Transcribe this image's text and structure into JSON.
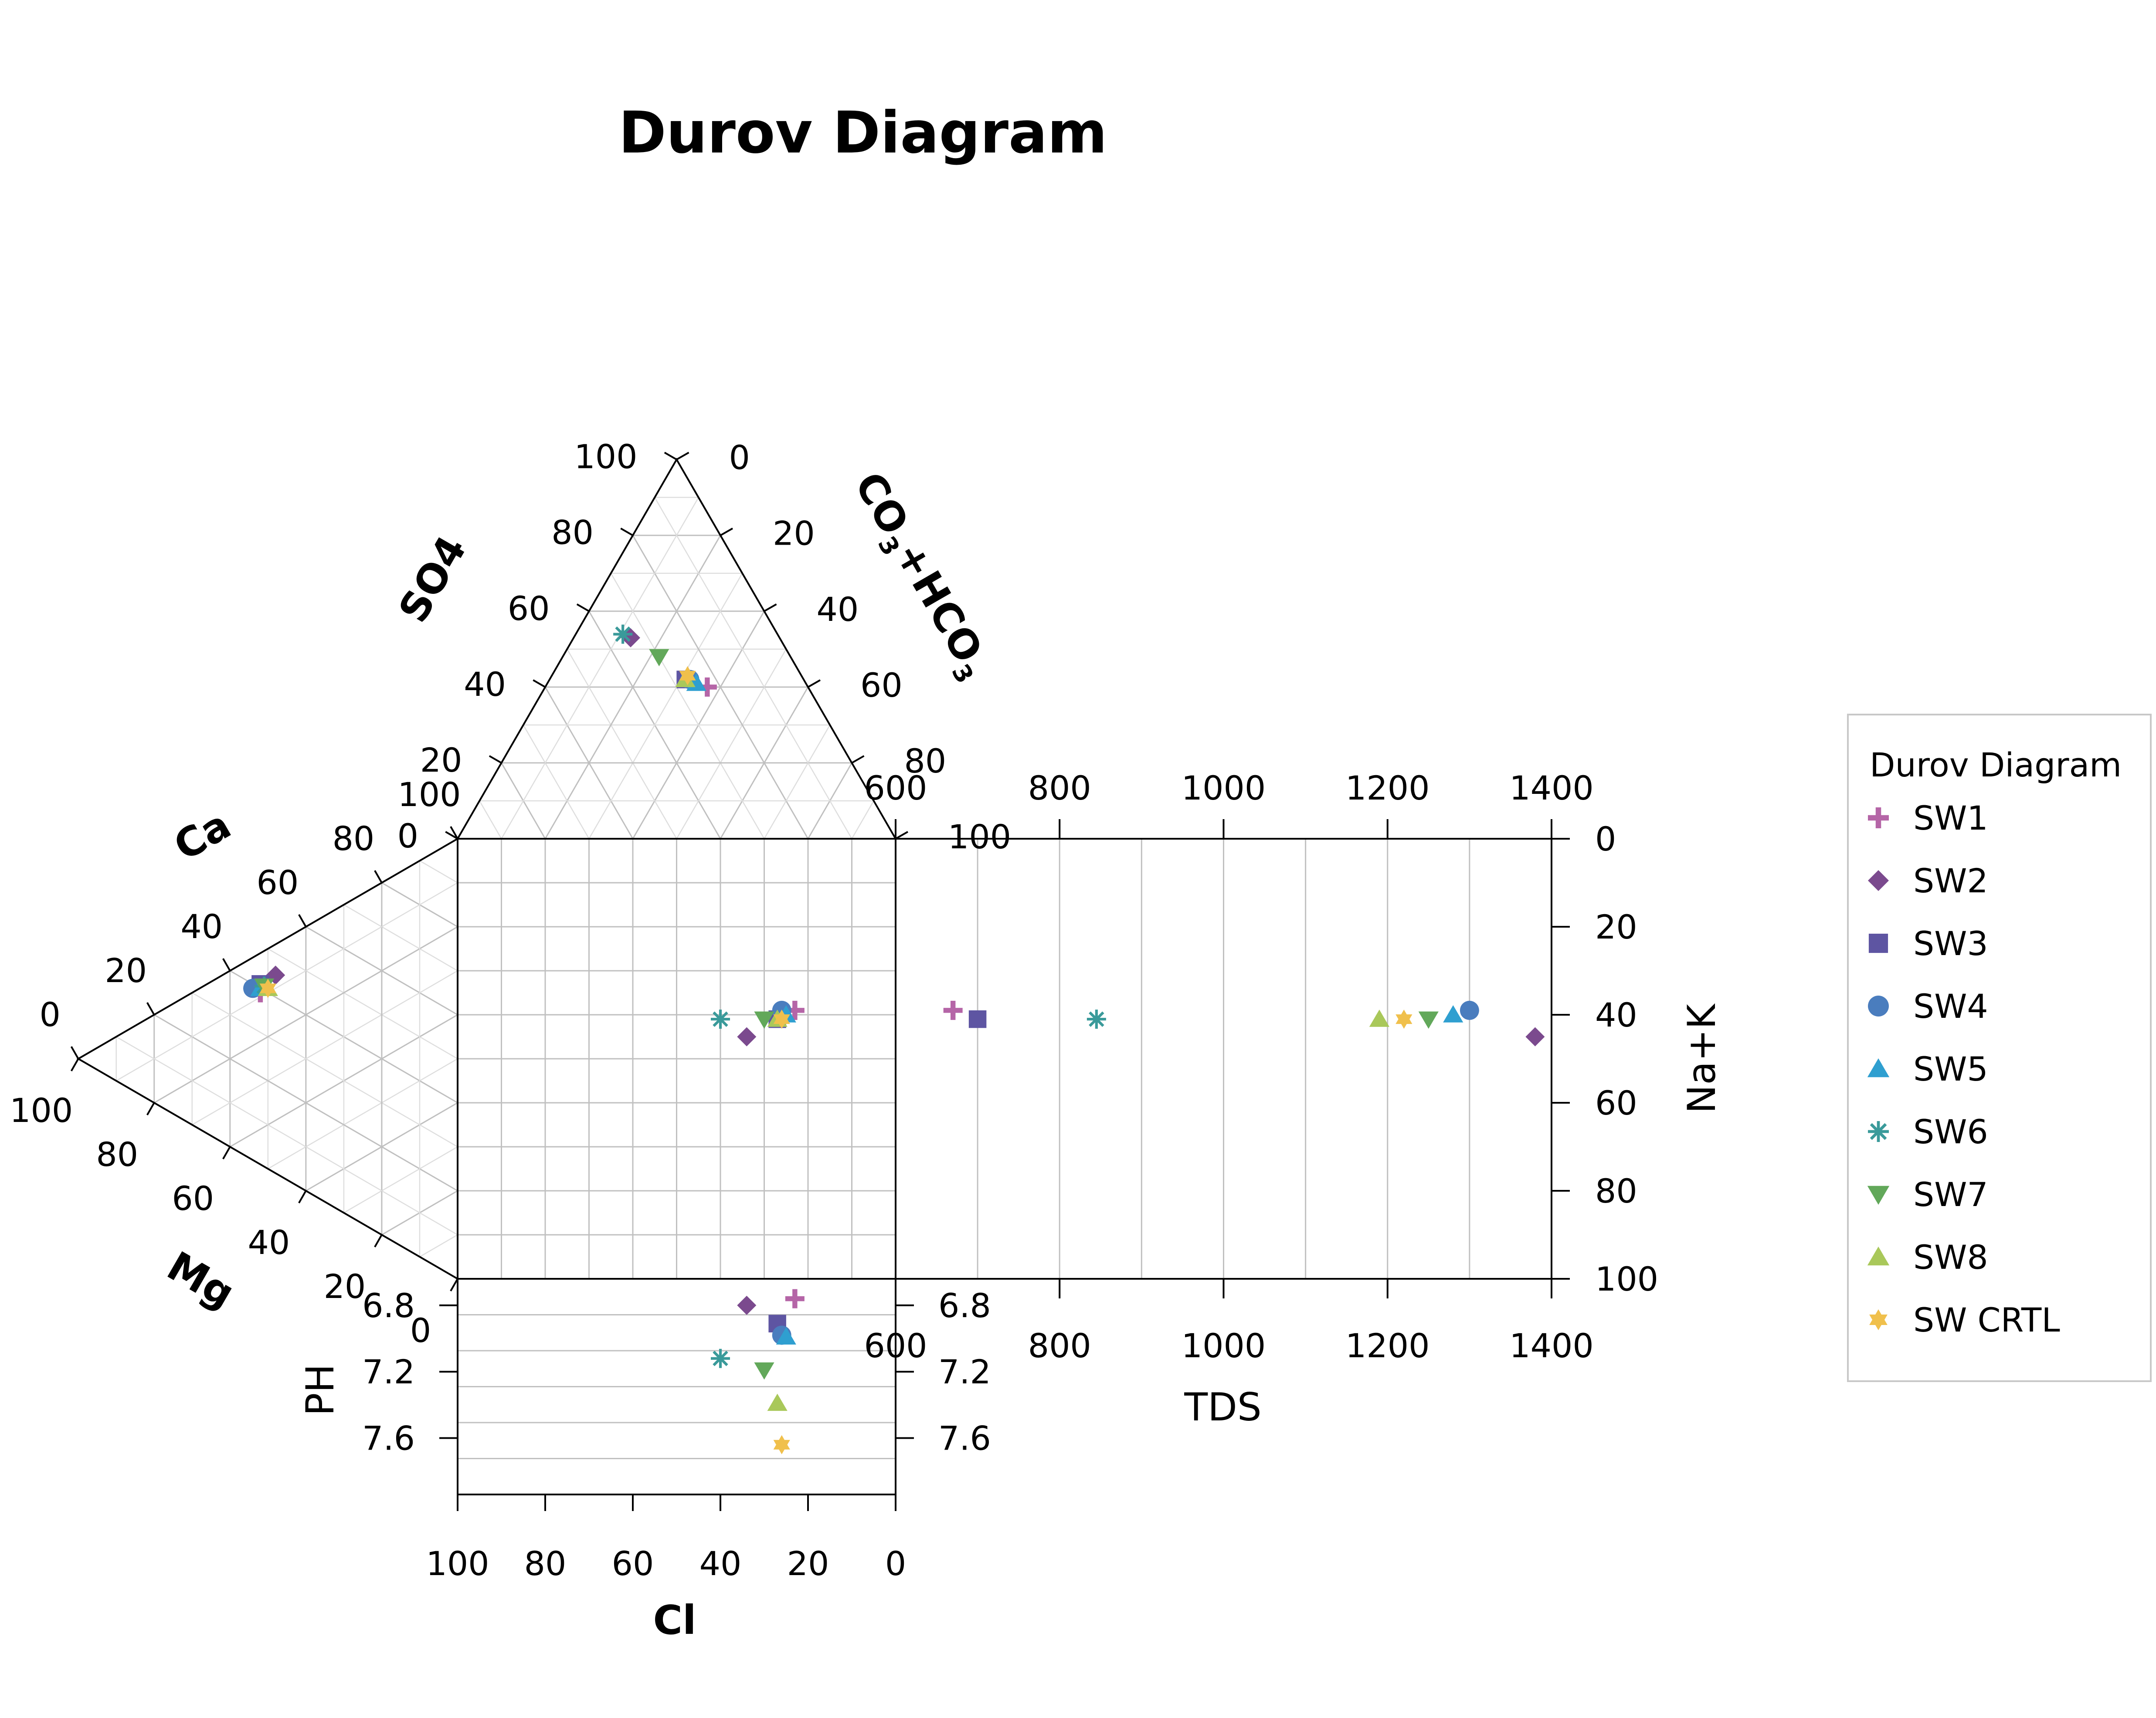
{
  "chart_data": {
    "type": "scatter",
    "title": "Durov Diagram",
    "axes": {
      "so4": "SO4",
      "co3hco3": {
        "base": "CO",
        "sub1": "3",
        "mid": "+HCO",
        "sub2": "3"
      },
      "ca": "Ca",
      "mg": "Mg",
      "cl": "Cl",
      "nak": "Na+K",
      "tds": "TDS",
      "ph": "PH"
    },
    "ticks": {
      "pct": [
        "0",
        "20",
        "40",
        "60",
        "80",
        "100"
      ],
      "tds": [
        "600",
        "800",
        "1000",
        "1200",
        "1400"
      ],
      "nak": [
        "0",
        "20",
        "40",
        "60",
        "80",
        "100"
      ],
      "ph": [
        "6.8",
        "7.2",
        "7.6"
      ]
    },
    "tds_range": [
      600,
      1400
    ],
    "ph_range": [
      6.64,
      7.94
    ],
    "grid": true,
    "legend": {
      "title": "Durov Diagram",
      "position": "right"
    },
    "series": [
      {
        "name": "SW1",
        "marker": "plus",
        "color": "#B565A7",
        "anion": {
          "cl": 23,
          "so4": 40
        },
        "cation": {
          "mg": 9,
          "ca": 52
        },
        "tds": 670,
        "ph": 6.76
      },
      {
        "name": "SW2",
        "marker": "diamond",
        "color": "#7B4A8E",
        "anion": {
          "cl": 34,
          "so4": 53
        },
        "cation": {
          "mg": 7,
          "ca": 48
        },
        "tds": 1380,
        "ph": 6.8
      },
      {
        "name": "SW3",
        "marker": "square",
        "color": "#5E55A2",
        "anion": {
          "cl": 27,
          "so4": 42
        },
        "cation": {
          "mg": 7,
          "ca": 52
        },
        "tds": 700,
        "ph": 6.91
      },
      {
        "name": "SW4",
        "marker": "circle",
        "color": "#4A7DBE",
        "anion": {
          "cl": 26,
          "so4": 42
        },
        "cation": {
          "mg": 7,
          "ca": 54
        },
        "tds": 1300,
        "ph": 6.98
      },
      {
        "name": "SW5",
        "marker": "triangle-up",
        "color": "#2F9FD0",
        "anion": {
          "cl": 25,
          "so4": 41
        },
        "cation": {
          "mg": 8,
          "ca": 52
        },
        "tds": 1280,
        "ph": 6.99
      },
      {
        "name": "SW6",
        "marker": "asterisk",
        "color": "#3A9A9A",
        "anion": {
          "cl": 40,
          "so4": 65
        },
        "cation": {
          "mg": 8,
          "ca": 51
        },
        "tds": 845,
        "ph": 7.12
      },
      {
        "name": "SW7",
        "marker": "triangle-down",
        "color": "#62A85A",
        "anion": {
          "cl": 30,
          "so4": 48
        },
        "cation": {
          "mg": 8,
          "ca": 51
        },
        "tds": 1250,
        "ph": 7.19
      },
      {
        "name": "SW8",
        "marker": "triangle-up",
        "color": "#A9C85A",
        "anion": {
          "cl": 27,
          "so4": 42
        },
        "cation": {
          "mg": 9,
          "ca": 50
        },
        "tds": 1190,
        "ph": 7.39
      },
      {
        "name": "SW CRTL",
        "marker": "star",
        "color": "#F0C04C",
        "anion": {
          "cl": 26,
          "so4": 43
        },
        "cation": {
          "mg": 9,
          "ca": 50
        },
        "tds": 1220,
        "ph": 7.64
      }
    ]
  }
}
